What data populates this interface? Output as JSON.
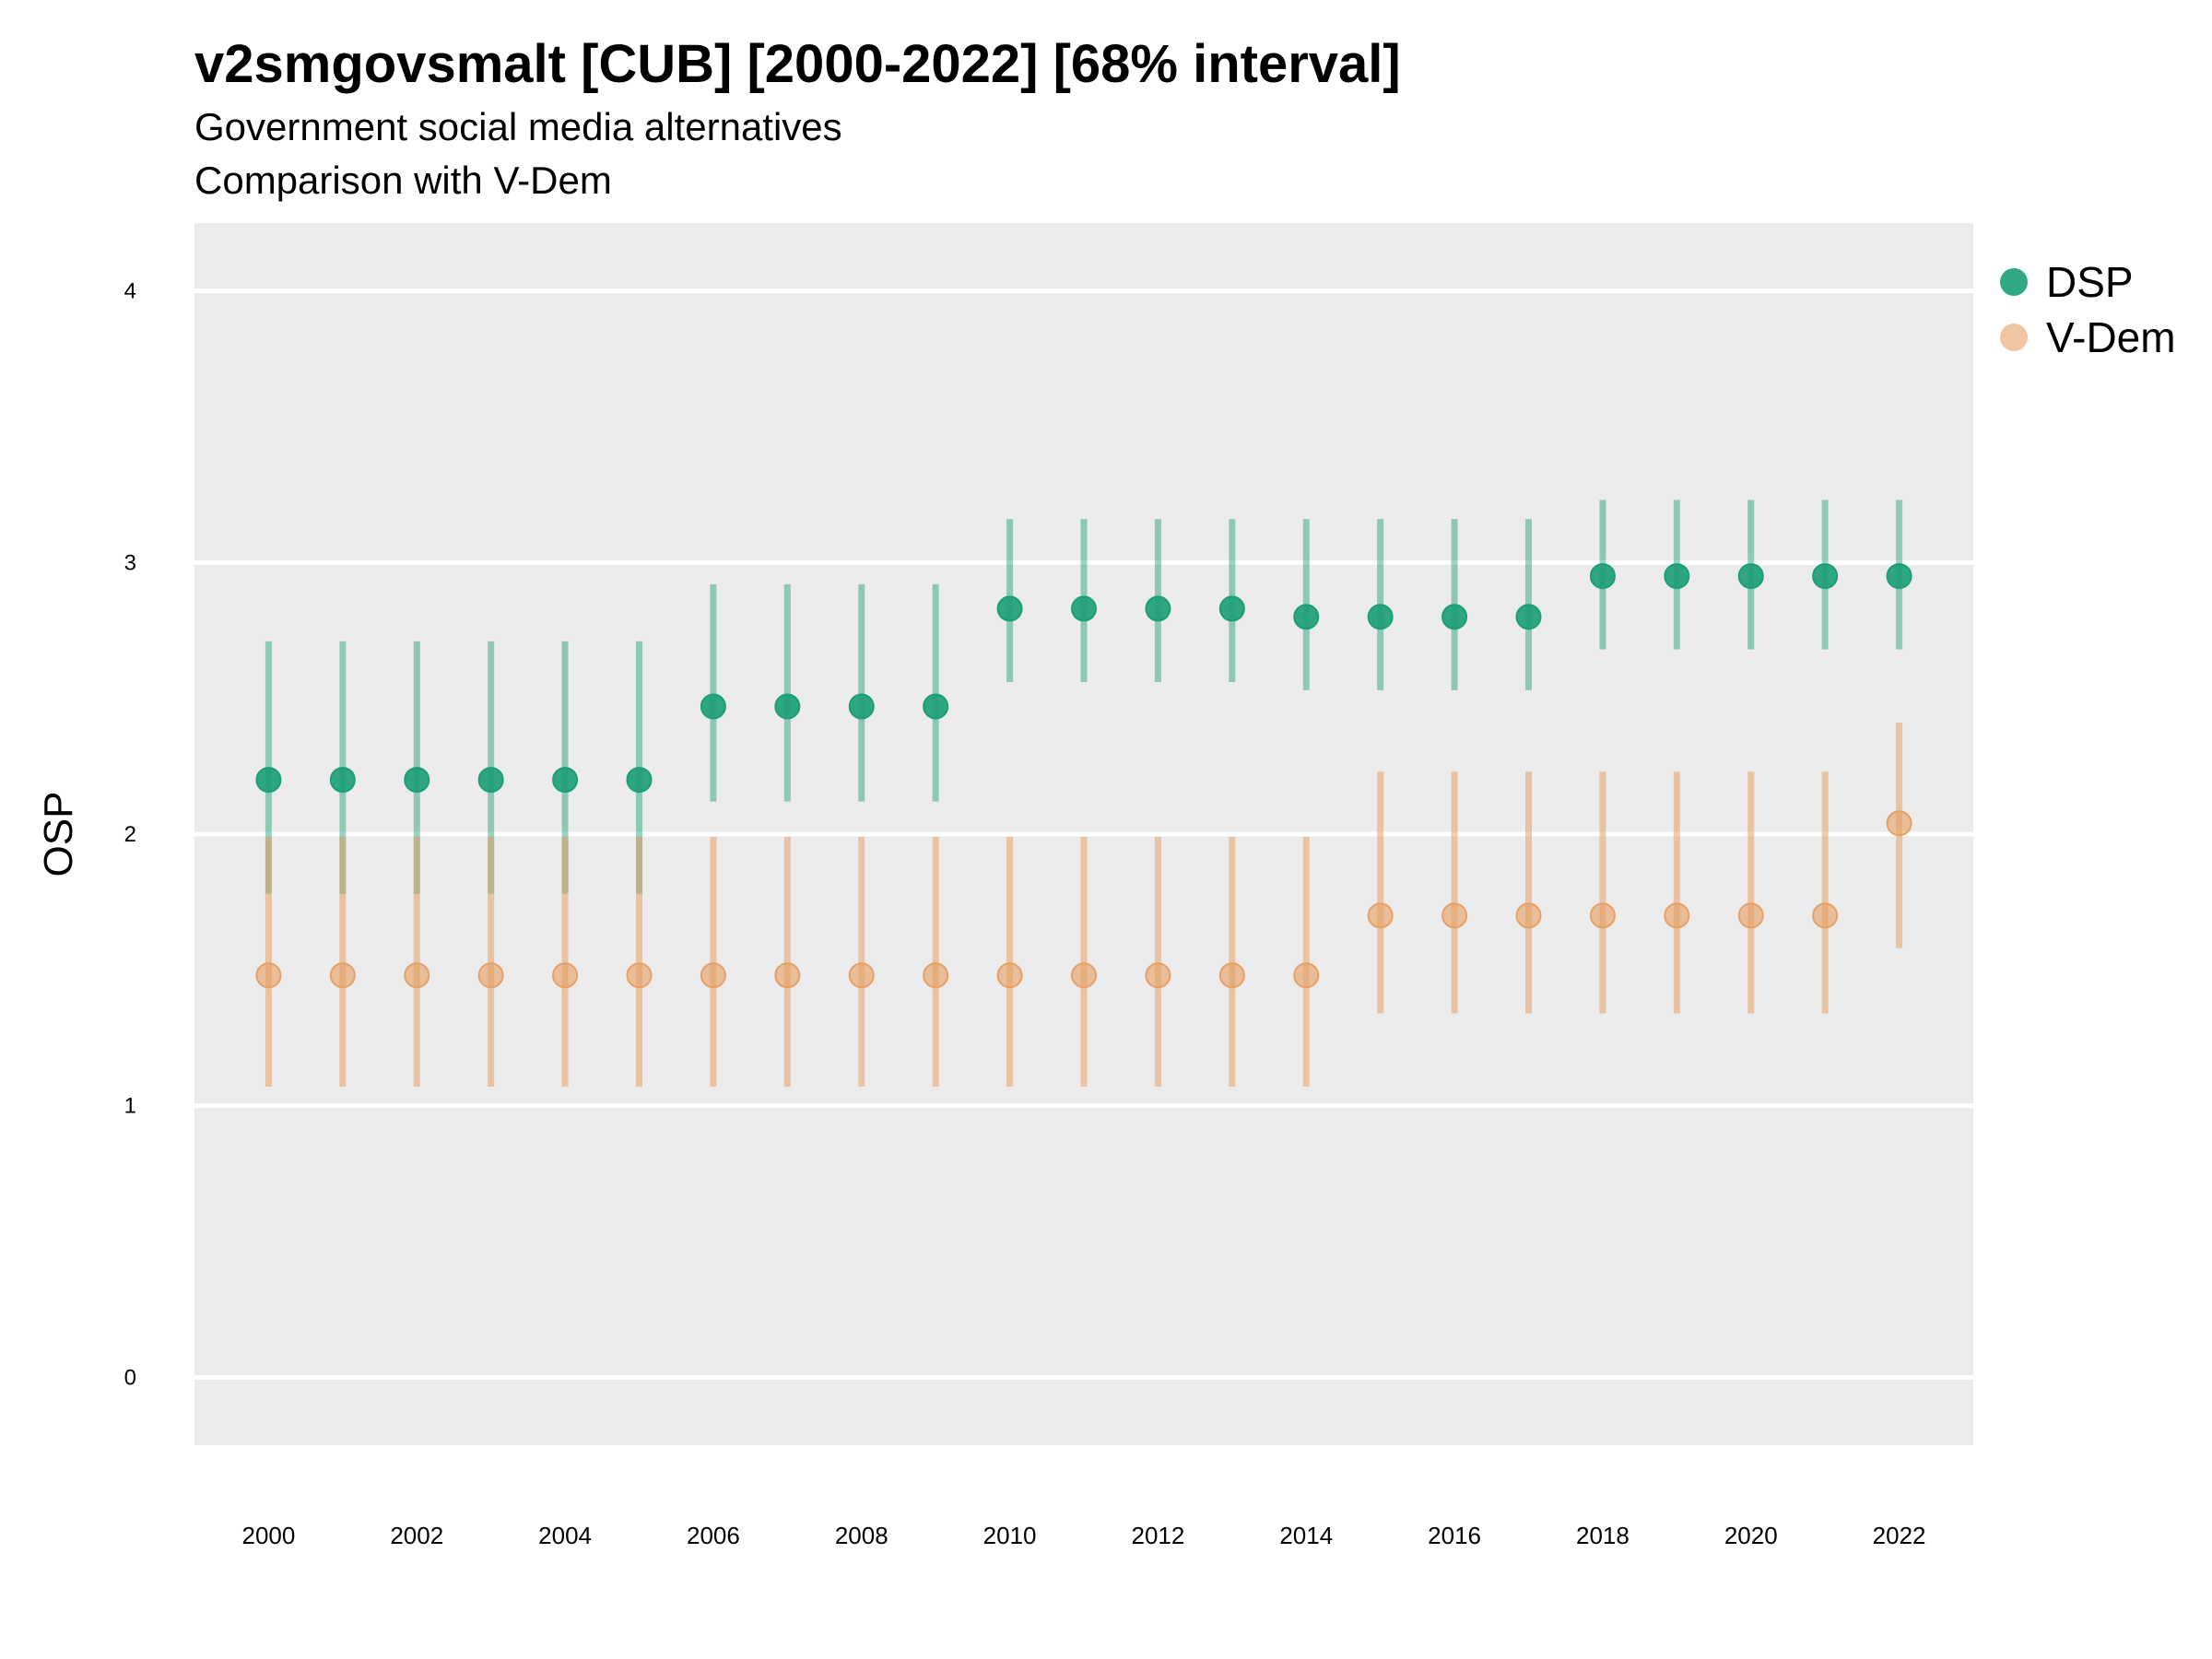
{
  "chart_data": {
    "type": "scatter",
    "title": "v2smgovsmalt [CUB] [2000-2022] [68% interval]",
    "subtitle": "Government social media alternatives",
    "caption": "Comparison with V-Dem",
    "ylabel": "OSP",
    "xlabel": "",
    "ylim": [
      -0.25,
      4.25
    ],
    "xlim": [
      1999,
      2023
    ],
    "yticks": [
      0,
      1,
      2,
      3,
      4
    ],
    "xticks": [
      2000,
      2002,
      2004,
      2006,
      2008,
      2010,
      2012,
      2014,
      2016,
      2018,
      2020,
      2022
    ],
    "grid": true,
    "legend_position": "right",
    "x": [
      2000,
      2001,
      2002,
      2003,
      2004,
      2005,
      2006,
      2007,
      2008,
      2009,
      2010,
      2011,
      2012,
      2013,
      2014,
      2015,
      2016,
      2017,
      2018,
      2019,
      2020,
      2021,
      2022
    ],
    "series": [
      {
        "name": "DSP",
        "color": "#1b9e77",
        "values": [
          2.2,
          2.2,
          2.2,
          2.2,
          2.2,
          2.2,
          2.47,
          2.47,
          2.47,
          2.47,
          2.83,
          2.83,
          2.83,
          2.83,
          2.8,
          2.8,
          2.8,
          2.8,
          2.95,
          2.95,
          2.95,
          2.95,
          2.95
        ],
        "lower": [
          1.78,
          1.78,
          1.78,
          1.78,
          1.78,
          1.78,
          2.12,
          2.12,
          2.12,
          2.12,
          2.56,
          2.56,
          2.56,
          2.56,
          2.53,
          2.53,
          2.53,
          2.53,
          2.68,
          2.68,
          2.68,
          2.68,
          2.68
        ],
        "upper": [
          2.71,
          2.71,
          2.71,
          2.71,
          2.71,
          2.71,
          2.92,
          2.92,
          2.92,
          2.92,
          3.16,
          3.16,
          3.16,
          3.16,
          3.16,
          3.16,
          3.16,
          3.16,
          3.23,
          3.23,
          3.23,
          3.23,
          3.23
        ]
      },
      {
        "name": "V-Dem",
        "color": "#e6a064",
        "values": [
          1.48,
          1.48,
          1.48,
          1.48,
          1.48,
          1.48,
          1.48,
          1.48,
          1.48,
          1.48,
          1.48,
          1.48,
          1.48,
          1.48,
          1.48,
          1.7,
          1.7,
          1.7,
          1.7,
          1.7,
          1.7,
          1.7,
          2.04
        ],
        "lower": [
          1.07,
          1.07,
          1.07,
          1.07,
          1.07,
          1.07,
          1.07,
          1.07,
          1.07,
          1.07,
          1.07,
          1.07,
          1.07,
          1.07,
          1.07,
          1.34,
          1.34,
          1.34,
          1.34,
          1.34,
          1.34,
          1.34,
          1.58
        ],
        "upper": [
          1.99,
          1.99,
          1.99,
          1.99,
          1.99,
          1.99,
          1.99,
          1.99,
          1.99,
          1.99,
          1.99,
          1.99,
          1.99,
          1.99,
          1.99,
          2.23,
          2.23,
          2.23,
          2.23,
          2.23,
          2.23,
          2.23,
          2.41
        ]
      }
    ]
  }
}
